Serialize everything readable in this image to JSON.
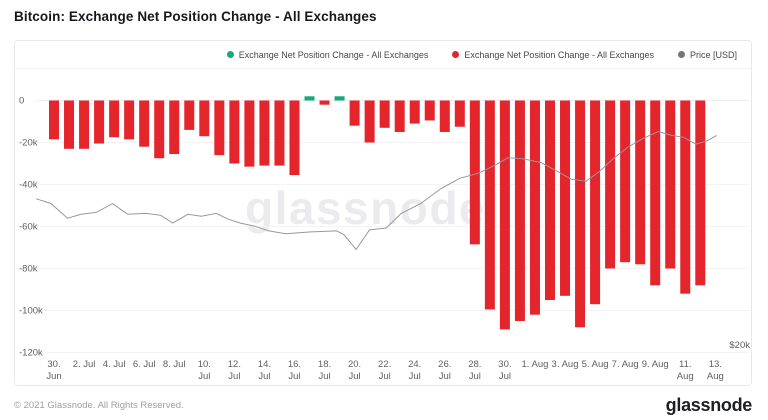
{
  "title": "Bitcoin: Exchange Net Position Change - All Exchanges",
  "watermark": "glassnode",
  "legend": {
    "items": [
      {
        "label": "Exchange Net Position Change - All Exchanges",
        "color": "#17a87e"
      },
      {
        "label": "Exchange Net Position Change - All Exchanges",
        "color": "#e5252c"
      },
      {
        "label": "Price [USD]",
        "color": "#75767b"
      }
    ]
  },
  "footer": {
    "copyright": "© 2021 Glassnode. All Rights Reserved.",
    "logo": "glassnode"
  },
  "chart_data": {
    "type": "bar",
    "title": "Bitcoin: Exchange Net Position Change - All Exchanges",
    "grid": true,
    "legend_position": "top-right",
    "bar_series": {
      "name": "Exchange Net Position Change - All Exchanges",
      "units": "BTC, thousands",
      "positive_color": "#17a87e",
      "negative_color": "#e5252c",
      "dates": [
        "Jun 30",
        "Jul 1",
        "Jul 2",
        "Jul 3",
        "Jul 4",
        "Jul 5",
        "Jul 6",
        "Jul 7",
        "Jul 8",
        "Jul 9",
        "Jul 10",
        "Jul 11",
        "Jul 12",
        "Jul 13",
        "Jul 14",
        "Jul 15",
        "Jul 16",
        "Jul 17",
        "Jul 18",
        "Jul 19",
        "Jul 20",
        "Jul 21",
        "Jul 22",
        "Jul 23",
        "Jul 24",
        "Jul 25",
        "Jul 26",
        "Jul 27",
        "Jul 28",
        "Jul 29",
        "Jul 30",
        "Jul 31",
        "Aug 1",
        "Aug 2",
        "Aug 3",
        "Aug 4",
        "Aug 5",
        "Aug 6",
        "Aug 7",
        "Aug 8",
        "Aug 9",
        "Aug 10",
        "Aug 11",
        "Aug 12"
      ],
      "values_k": [
        -18.5,
        -23,
        -23,
        -20.5,
        -17.5,
        -18.5,
        -22,
        -27.5,
        -25.5,
        -14,
        -17,
        -26,
        -30,
        -31.5,
        -31,
        -31,
        -35.5,
        2,
        -2,
        2,
        -12,
        -20,
        -13,
        -15,
        -11,
        -9.5,
        -15,
        -12.5,
        -68.5,
        -99.5,
        -109,
        -105,
        -102,
        -95,
        -93,
        -108,
        -97,
        -80,
        -77,
        -78,
        -88,
        -80,
        -92,
        -88
      ]
    },
    "line_series": {
      "name": "Price [USD]",
      "units": "USD, thousands",
      "color": "#97989d",
      "points_day_usdk": [
        [
          -1.2,
          34.9
        ],
        [
          -0.2,
          34.4
        ],
        [
          0.9,
          32.9
        ],
        [
          1.8,
          33.3
        ],
        [
          2.8,
          33.5
        ],
        [
          3.9,
          34.4
        ],
        [
          4.9,
          33.3
        ],
        [
          6.1,
          33.4
        ],
        [
          7.1,
          33.2
        ],
        [
          7.9,
          32.4
        ],
        [
          8.9,
          33.3
        ],
        [
          9.8,
          33.1
        ],
        [
          10.8,
          33.4
        ],
        [
          11.6,
          32.8
        ],
        [
          12.4,
          32.4
        ],
        [
          13.3,
          32.1
        ],
        [
          14.3,
          31.6
        ],
        [
          15.4,
          31.3
        ],
        [
          17.1,
          31.5
        ],
        [
          18.8,
          31.6
        ],
        [
          19.3,
          31.2
        ],
        [
          20.1,
          29.7
        ],
        [
          21,
          31.7
        ],
        [
          22.1,
          31.9
        ],
        [
          23.1,
          33.4
        ],
        [
          24.4,
          34.4
        ],
        [
          25.7,
          35.9
        ],
        [
          27,
          37
        ],
        [
          28.2,
          37.5
        ],
        [
          29.3,
          38.3
        ],
        [
          30.2,
          39.1
        ],
        [
          31.2,
          39
        ],
        [
          32.4,
          38.6
        ],
        [
          33.5,
          37.7
        ],
        [
          34.4,
          36.9
        ],
        [
          35.4,
          36.7
        ],
        [
          36.3,
          37.7
        ],
        [
          37.2,
          39
        ],
        [
          38.2,
          40.2
        ],
        [
          39.2,
          41.1
        ],
        [
          40.2,
          41.8
        ],
        [
          41.1,
          41.4
        ],
        [
          41.9,
          41.2
        ],
        [
          42.7,
          40.5
        ],
        [
          43.4,
          40.8
        ],
        [
          44.1,
          41.4
        ]
      ]
    },
    "left_axis": {
      "ticks": [
        "0",
        "-20k",
        "-40k",
        "-60k",
        "-80k",
        "-100k",
        "-120k"
      ],
      "tick_values_k": [
        0,
        -20,
        -40,
        -60,
        -80,
        -100,
        -120
      ],
      "range_k": [
        -125,
        5
      ]
    },
    "right_axis": {
      "visible_label": "$20k"
    },
    "x_axis": {
      "tick_labels": [
        [
          "30.",
          "Jun"
        ],
        [
          "2. Jul"
        ],
        [
          "4. Jul"
        ],
        [
          "6. Jul"
        ],
        [
          "8. Jul"
        ],
        [
          "10.",
          "Jul"
        ],
        [
          "12.",
          "Jul"
        ],
        [
          "14.",
          "Jul"
        ],
        [
          "16.",
          "Jul"
        ],
        [
          "18.",
          "Jul"
        ],
        [
          "20.",
          "Jul"
        ],
        [
          "22.",
          "Jul"
        ],
        [
          "24.",
          "Jul"
        ],
        [
          "26.",
          "Jul"
        ],
        [
          "28.",
          "Jul"
        ],
        [
          "30.",
          "Jul"
        ],
        [
          "1. Aug"
        ],
        [
          "3. Aug"
        ],
        [
          "5. Aug"
        ],
        [
          "7. Aug"
        ],
        [
          "9. Aug"
        ],
        [
          "11.",
          "Aug"
        ],
        [
          "13.",
          "Aug"
        ]
      ]
    }
  }
}
